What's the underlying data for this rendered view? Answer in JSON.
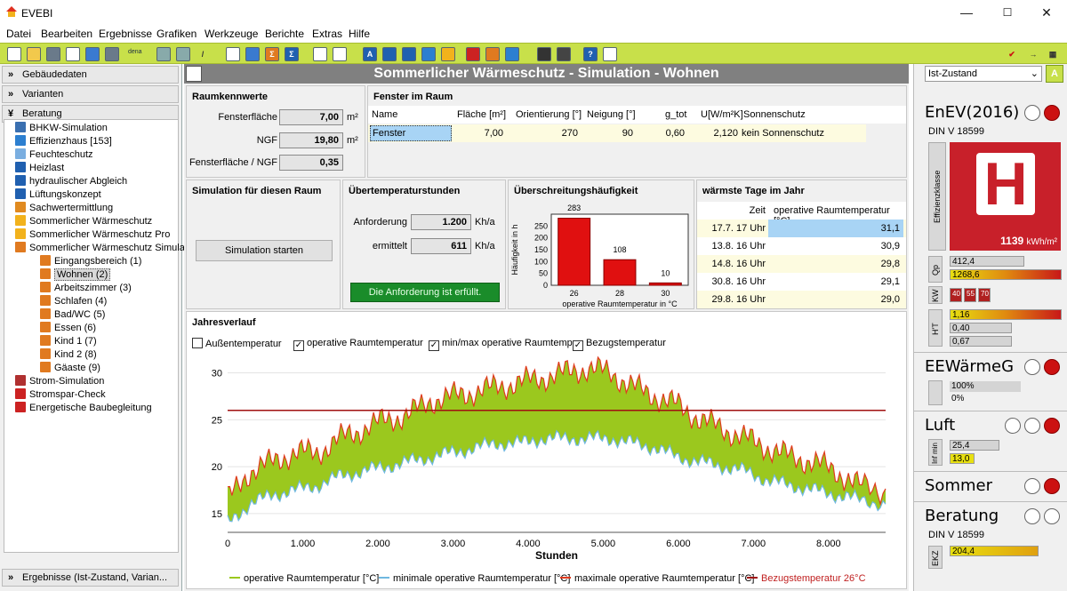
{
  "window": {
    "title": "EVEBI",
    "min": "—",
    "max": "☐",
    "close": "✕"
  },
  "menu": [
    "Datei",
    "Bearbeiten",
    "Ergebnisse",
    "Grafiken",
    "Werkzeuge",
    "Berichte",
    "Extras",
    "Hilfe"
  ],
  "toolbar_dena": "dena",
  "left": {
    "sections": [
      "Gebäudedaten",
      "Varianten",
      "Beratung"
    ],
    "bottom": "Ergebnisse (Ist-Zustand, Varian...",
    "tree": [
      {
        "label": "BHKW-Simulation",
        "lvl": 0,
        "color": "#3a6fb0"
      },
      {
        "label": "Effizienzhaus [153]",
        "lvl": 0,
        "color": "#2c7fd0"
      },
      {
        "label": "Feuchteschutz",
        "lvl": 0,
        "color": "#7aaee0"
      },
      {
        "label": "Heizlast",
        "lvl": 0,
        "color": "#2060b0"
      },
      {
        "label": "hydraulischer Abgleich",
        "lvl": 0,
        "color": "#2060b0"
      },
      {
        "label": "Lüftungskonzept",
        "lvl": 0,
        "color": "#2060b0"
      },
      {
        "label": "Sachwertermittlung",
        "lvl": 0,
        "color": "#e08a20"
      },
      {
        "label": "Sommerlicher Wärmeschutz",
        "lvl": 0,
        "color": "#f2b21c"
      },
      {
        "label": "Sommerlicher Wärmeschutz Pro",
        "lvl": 0,
        "color": "#f2b21c"
      },
      {
        "label": "Sommerlicher Wärmeschutz Simulat",
        "lvl": 0,
        "color": "#e07a20"
      },
      {
        "label": "Eingangsbereich (1)",
        "lvl": 1,
        "color": "#e07a20"
      },
      {
        "label": "Wohnen (2)",
        "lvl": 1,
        "color": "#e07a20",
        "sel": true
      },
      {
        "label": "Arbeitszimmer (3)",
        "lvl": 1,
        "color": "#e07a20"
      },
      {
        "label": "Schlafen (4)",
        "lvl": 1,
        "color": "#e07a20"
      },
      {
        "label": "Bad/WC (5)",
        "lvl": 1,
        "color": "#e07a20"
      },
      {
        "label": "Essen (6)",
        "lvl": 1,
        "color": "#e07a20"
      },
      {
        "label": "Kind 1 (7)",
        "lvl": 1,
        "color": "#e07a20"
      },
      {
        "label": "Kind 2 (8)",
        "lvl": 1,
        "color": "#e07a20"
      },
      {
        "label": "Gäaste (9)",
        "lvl": 1,
        "color": "#e07a20"
      },
      {
        "label": "Strom-Simulation",
        "lvl": 0,
        "color": "#b03030"
      },
      {
        "label": "Stromspar-Check",
        "lvl": 0,
        "color": "#cc2222"
      },
      {
        "label": "Energetische Baubegleitung",
        "lvl": 0,
        "color": "#cc2222"
      }
    ]
  },
  "main": {
    "title": "Sommerlicher Wärmeschutz - Simulation - Wohnen",
    "raumkennwerte": {
      "title": "Raumkennwerte",
      "rows": [
        {
          "label": "Fensterfläche",
          "value": "7,00",
          "unit": "m²"
        },
        {
          "label": "NGF",
          "value": "19,80",
          "unit": "m²"
        },
        {
          "label": "Fensterfläche / NGF",
          "value": "0,35",
          "unit": ""
        }
      ]
    },
    "fenster": {
      "title": "Fenster im Raum",
      "headers": [
        "Name",
        "Fläche [m²]",
        "Orientierung [°]",
        "Neigung [°]",
        "g_tot",
        "U[W/m²K]",
        "Sonnenschutz"
      ],
      "row": [
        "Fenster",
        "7,00",
        "270",
        "90",
        "0,60",
        "2,120",
        "kein Sonnenschutz"
      ]
    },
    "simulation": {
      "title": "Simulation für diesen Raum",
      "button": "Simulation starten"
    },
    "ueber": {
      "title": "Übertemperaturstunden",
      "rows": [
        {
          "label": "Anforderung",
          "value": "1.200",
          "unit": "Kh/a"
        },
        {
          "label": "ermittelt",
          "value": "611",
          "unit": "Kh/a"
        }
      ],
      "status": "Die Anforderung ist erfüllt."
    },
    "haeufigkeit": {
      "title": "Überschreitungshäufigkeit",
      "ylabel": "Häufigkeit in h",
      "xlabel": "operative Raumtemperatur in °C"
    },
    "warmste": {
      "title": "wärmste Tage im Jahr",
      "headers": [
        "Zeit",
        "operative Raumtemperatur [°C]"
      ],
      "rows": [
        [
          "17.7. 17 Uhr",
          "31,1"
        ],
        [
          "13.8. 16 Uhr",
          "30,9"
        ],
        [
          "14.8. 16 Uhr",
          "29,8"
        ],
        [
          "30.8. 16 Uhr",
          "29,1"
        ],
        [
          "29.8. 16 Uhr",
          "29,0"
        ]
      ]
    },
    "jahresverlauf": {
      "title": "Jahresverlauf",
      "checks": [
        {
          "label": "Außentemperatur",
          "checked": false
        },
        {
          "label": "operative Raumtemperatur",
          "checked": true
        },
        {
          "label": "min/max operative Raumtemp.",
          "checked": true
        },
        {
          "label": "Bezugstemperatur",
          "checked": true
        }
      ],
      "xlabel": "Stunden",
      "legend": [
        {
          "label": "operative Raumtemperatur [°C]",
          "color": "#9bc81e"
        },
        {
          "label": "minimale operative Raumtemperatur [°C]",
          "color": "#6fb8e0"
        },
        {
          "label": "maximale operative Raumtemperatur [°C]",
          "color": "#e03a1e"
        },
        {
          "label": "Bezugstemperatur 26°C",
          "color": "#a01010"
        }
      ]
    }
  },
  "chart_data": [
    {
      "type": "bar",
      "title": "Überschreitungshäufigkeit",
      "ylabel": "Häufigkeit in h",
      "xlabel": "operative Raumtemperatur in °C",
      "categories": [
        "26",
        "28",
        "30"
      ],
      "values": [
        283,
        108,
        10
      ],
      "ylim": [
        0,
        300
      ],
      "yticks": [
        0,
        50,
        100,
        150,
        200,
        250
      ],
      "color": "#e01010"
    },
    {
      "type": "line",
      "title": "Jahresverlauf",
      "xlabel": "Stunden",
      "xlim": [
        0,
        8760
      ],
      "ylim": [
        13,
        31
      ],
      "xticks": [
        0,
        1000,
        2000,
        3000,
        4000,
        5000,
        6000,
        7000,
        8000
      ],
      "xticklabels": [
        "0",
        "1.000",
        "2.000",
        "3.000",
        "4.000",
        "5.000",
        "6.000",
        "7.000",
        "8.000"
      ],
      "yticks": [
        15,
        20,
        25,
        30
      ],
      "reference": 26,
      "x": [
        0,
        300,
        600,
        900,
        1200,
        1500,
        1800,
        2100,
        2400,
        2700,
        3000,
        3300,
        3600,
        3900,
        4200,
        4500,
        4800,
        5100,
        5400,
        5700,
        6000,
        6300,
        6600,
        6900,
        7200,
        7500,
        7800,
        8100,
        8400,
        8760
      ],
      "series": [
        {
          "name": "maximale operative Raumtemperatur [°C]",
          "values": [
            16.5,
            19.5,
            20.5,
            21.5,
            21.5,
            23,
            24,
            25,
            25.5,
            27,
            27.5,
            28,
            28.5,
            29,
            29.5,
            30,
            30.5,
            30,
            28.5,
            27.5,
            26.5,
            25,
            24,
            23,
            22,
            21,
            20.5,
            19.5,
            18,
            17.5
          ]
        },
        {
          "name": "minimale operative Raumtemperatur [°C]",
          "values": [
            14,
            16,
            17,
            17.5,
            18,
            19,
            19.5,
            20,
            20.5,
            21,
            21.5,
            22,
            22.5,
            22.5,
            23,
            23,
            23,
            23,
            22.5,
            22,
            21,
            20.5,
            20,
            19.5,
            18.5,
            18,
            17.5,
            17,
            16.5,
            16
          ]
        }
      ]
    }
  ],
  "right": {
    "dropdown": "Ist-Zustand",
    "enev": "EnEV(2016)",
    "din": "DIN V 18599",
    "effizienz": "Effizienzklasse",
    "klasse": "H",
    "kwh_value": "1139",
    "kwh_unit": "kWh/m²",
    "qp_label": "Qp",
    "qp": [
      "412,4",
      "1268,6"
    ],
    "kw_label": "KW",
    "kw": [
      "40",
      "55",
      "70"
    ],
    "ht_label": "H'T",
    "ht": [
      "1,16",
      "0,40",
      "0,67"
    ],
    "eew": "EEWärmeG",
    "eew_vals": [
      "100%",
      "0%"
    ],
    "luft": "Luft",
    "luft_label": "Inf min",
    "luft_vals": [
      "25,4",
      "13,0"
    ],
    "sommer": "Sommer",
    "beratung": "Beratung",
    "beratung_din": "DIN V 18599",
    "ekz_label": "EKZ",
    "ekz": "204,4"
  }
}
